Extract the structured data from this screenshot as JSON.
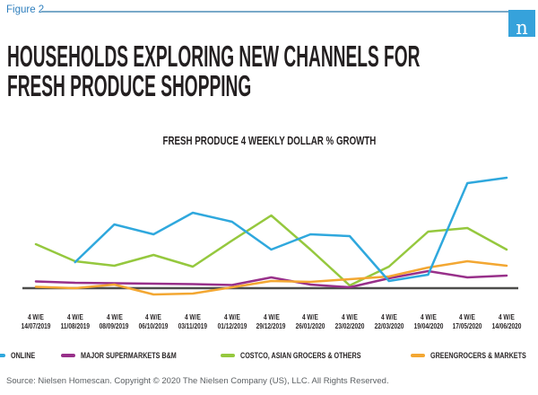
{
  "figure_label": "Figure 2",
  "logo": {
    "letter": "n",
    "color": "#36A2DB"
  },
  "title_line1": "HOUSEHOLDS EXPLORING NEW CHANNELS FOR",
  "title_line2": "FRESH PRODUCE SHOPPING",
  "chart_data": {
    "type": "line",
    "title": "FRESH PRODUCE 4 WEEKLY DOLLAR % GROWTH",
    "x_tick_prefix": "4 W/E",
    "categories": [
      "14/07/2019",
      "11/08/2019",
      "08/09/2019",
      "06/10/2019",
      "03/11/2019",
      "01/12/2019",
      "29/12/2019",
      "26/01/2020",
      "23/02/2020",
      "22/03/2020",
      "19/04/2020",
      "17/05/2020",
      "14/06/2020"
    ],
    "series": [
      {
        "name": "ONLINE",
        "color": "#2FA8DD",
        "values": [
          null,
          29,
          71,
          60,
          84,
          74,
          43,
          60,
          58,
          8,
          15,
          117,
          123
        ]
      },
      {
        "name": "MAJOR SUPERMARKETS B&M",
        "color": "#98308A",
        "values": [
          7.5,
          6,
          5.5,
          5,
          4.5,
          3.5,
          12,
          4,
          1,
          11,
          19,
          12,
          14
        ]
      },
      {
        "name": "COSTCO, ASIAN GROCERS & OTHERS",
        "color": "#95C83E",
        "values": [
          49,
          30,
          25,
          37,
          24,
          53,
          81,
          43,
          3,
          24,
          63,
          67,
          43
        ]
      },
      {
        "name": "GREENGROCERS & MARKETS",
        "color": "#F3A732",
        "values": [
          1.5,
          0,
          4,
          -7,
          -6,
          1,
          8,
          7,
          10,
          13,
          23,
          30,
          25
        ]
      }
    ],
    "y_axis": {
      "labels_visible": false,
      "baseline": 0,
      "units": "% growth (axis unlabeled)"
    },
    "baseline_color": "#4D4D4B",
    "legend_position": "bottom",
    "grid": false
  },
  "footer": "Source: Nielsen Homescan. Copyright © 2020 The Nielsen Company (US), LLC. All Rights Reserved."
}
